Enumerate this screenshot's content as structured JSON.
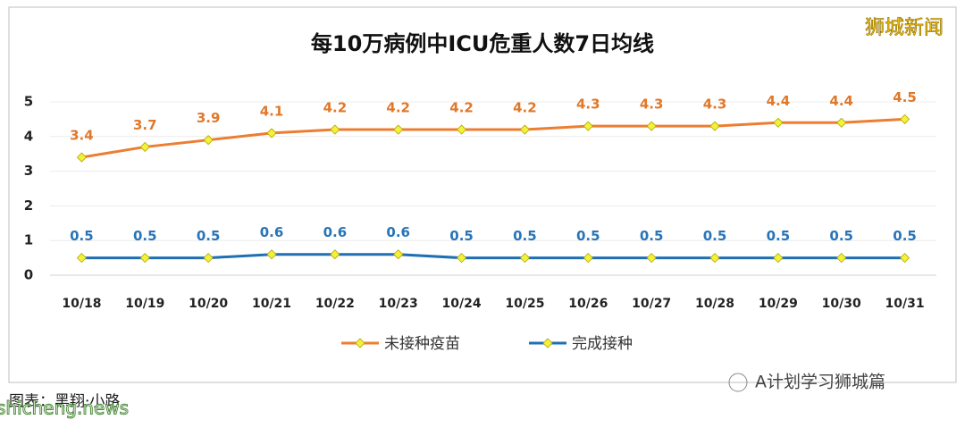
{
  "chart_data": {
    "type": "line",
    "title": "每10万病例中ICU危重人数7日均线",
    "categories": [
      "10/18",
      "10/19",
      "10/20",
      "10/21",
      "10/22",
      "10/23",
      "10/24",
      "10/25",
      "10/26",
      "10/27",
      "10/28",
      "10/29",
      "10/30",
      "10/31"
    ],
    "series": [
      {
        "name": "未接种疫苗",
        "color": "#ed7d31",
        "label_color": "#e0782a",
        "values": [
          3.4,
          3.7,
          3.9,
          4.1,
          4.2,
          4.2,
          4.2,
          4.2,
          4.3,
          4.3,
          4.3,
          4.4,
          4.4,
          4.5
        ]
      },
      {
        "name": "完成接种",
        "color": "#1f6fb5",
        "label_color": "#2874b8",
        "values": [
          0.5,
          0.5,
          0.5,
          0.6,
          0.6,
          0.6,
          0.5,
          0.5,
          0.5,
          0.5,
          0.5,
          0.5,
          0.5,
          0.5
        ]
      }
    ],
    "marker_color": "#f2f23a",
    "ylim": [
      0,
      5
    ],
    "yticks": [
      0,
      1,
      2,
      3,
      4,
      5
    ],
    "grid": true,
    "legend": "bottom"
  },
  "watermark": "狮城新闻",
  "caption": "图表：黑翔·小路",
  "source": "A计划学习狮城篇",
  "site": "shicheng.news"
}
